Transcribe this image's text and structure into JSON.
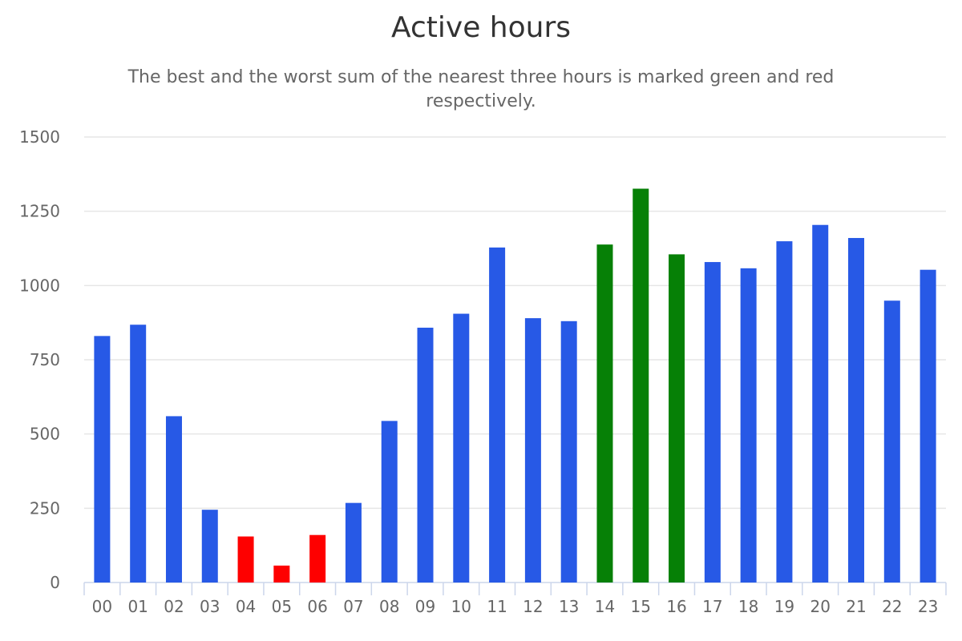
{
  "colors": {
    "default": "#2759e6",
    "best": "#068006",
    "worst": "#fe0000",
    "grid": "#e6e6e6",
    "axis": "#ccd6eb"
  },
  "chart_data": {
    "type": "bar",
    "title": "Active hours",
    "subtitle": "The best and the worst sum of the nearest three hours is marked green and red respectively.",
    "categories": [
      "00",
      "01",
      "02",
      "03",
      "04",
      "05",
      "06",
      "07",
      "08",
      "09",
      "10",
      "11",
      "12",
      "13",
      "14",
      "15",
      "16",
      "17",
      "18",
      "19",
      "20",
      "21",
      "22",
      "23"
    ],
    "values": [
      830,
      868,
      560,
      245,
      155,
      57,
      160,
      268,
      544,
      858,
      905,
      1128,
      890,
      880,
      1138,
      1326,
      1105,
      1079,
      1058,
      1149,
      1204,
      1160,
      949,
      1053
    ],
    "highlight": [
      "default",
      "default",
      "default",
      "default",
      "worst",
      "worst",
      "worst",
      "default",
      "default",
      "default",
      "default",
      "default",
      "default",
      "default",
      "best",
      "best",
      "best",
      "default",
      "default",
      "default",
      "default",
      "default",
      "default",
      "default"
    ],
    "ylim": [
      0,
      1500
    ],
    "yticks": [
      0,
      250,
      500,
      750,
      1000,
      1250,
      1500
    ],
    "ytick_labels": [
      "0",
      "250",
      "500",
      "750",
      "1000",
      "1250",
      "1500"
    ],
    "grid": true,
    "legend": "none"
  }
}
